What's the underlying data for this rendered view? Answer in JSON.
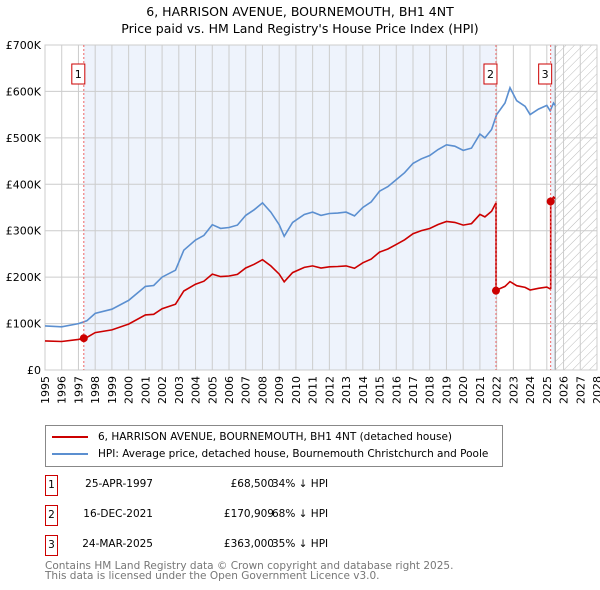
{
  "chart_data": {
    "type": "line",
    "title": "6, HARRISON AVENUE, BOURNEMOUTH, BH1 4NT",
    "subtitle": "Price paid vs. HM Land Registry's House Price Index (HPI)",
    "xlim": [
      1995,
      2028
    ],
    "ylim": [
      0,
      700000
    ],
    "x_ticks": [
      "1995",
      "1996",
      "1997",
      "1998",
      "1999",
      "2000",
      "2001",
      "2002",
      "2003",
      "2004",
      "2005",
      "2006",
      "2007",
      "2008",
      "2009",
      "2010",
      "2011",
      "2012",
      "2013",
      "2014",
      "2015",
      "2016",
      "2017",
      "2018",
      "2019",
      "2020",
      "2021",
      "2022",
      "2023",
      "2024",
      "2025",
      "2026",
      "2027",
      "2028"
    ],
    "y_ticks": [
      {
        "v": 0,
        "label": "£0"
      },
      {
        "v": 100000,
        "label": "£100K"
      },
      {
        "v": 200000,
        "label": "£200K"
      },
      {
        "v": 300000,
        "label": "£300K"
      },
      {
        "v": 400000,
        "label": "£400K"
      },
      {
        "v": 500000,
        "label": "£500K"
      },
      {
        "v": 600000,
        "label": "£600K"
      },
      {
        "v": 700000,
        "label": "£700K"
      }
    ],
    "grid": true,
    "forecast_hatch_from": 2025.5,
    "colors": {
      "property": "#cc0000",
      "hpi": "#5b8fd0",
      "shade": "#eef3fc"
    },
    "series": [
      {
        "name": "HPI",
        "x": [
          1995,
          1996,
          1997,
          1997.5,
          1998,
          1999,
          2000,
          2001,
          2001.5,
          2002,
          2002.8,
          2003.3,
          2004,
          2004.5,
          2005,
          2005.5,
          2006,
          2006.5,
          2007,
          2007.5,
          2008,
          2008.5,
          2009,
          2009.3,
          2009.8,
          2010.5,
          2011,
          2011.5,
          2012,
          2012.5,
          2013,
          2013.5,
          2014,
          2014.5,
          2015,
          2015.5,
          2016,
          2016.5,
          2017,
          2017.5,
          2018,
          2018.5,
          2019,
          2019.5,
          2020,
          2020.5,
          2021,
          2021.3,
          2021.7,
          2022,
          2022.5,
          2022.8,
          2023.2,
          2023.7,
          2024,
          2024.5,
          2025,
          2025.2,
          2025.4,
          2025.5
        ],
        "y": [
          95000,
          93000,
          100000,
          106000,
          122000,
          131000,
          150000,
          180000,
          182000,
          200000,
          215000,
          258000,
          280000,
          290000,
          313000,
          305000,
          307000,
          312000,
          333000,
          345000,
          360000,
          340000,
          313000,
          288000,
          318000,
          335000,
          340000,
          333000,
          337000,
          338000,
          340000,
          332000,
          350000,
          362000,
          385000,
          395000,
          410000,
          425000,
          445000,
          455000,
          462000,
          475000,
          485000,
          482000,
          473000,
          478000,
          508000,
          500000,
          518000,
          550000,
          575000,
          608000,
          580000,
          568000,
          550000,
          562000,
          570000,
          558000,
          575000,
          570000
        ]
      }
    ],
    "sales": [
      {
        "n": "1",
        "date": "25-APR-1997",
        "x": 1997.32,
        "price": 68500,
        "price_label": "£68,500",
        "hpi_diff": "34% ↓ HPI"
      },
      {
        "n": "2",
        "date": "16-DEC-2021",
        "x": 2021.96,
        "price": 170909,
        "price_label": "£170,909",
        "hpi_diff": "68% ↓ HPI"
      },
      {
        "n": "3",
        "date": "24-MAR-2025",
        "x": 2025.23,
        "price": 363000,
        "price_label": "£363,000",
        "hpi_diff": "35% ↓ HPI"
      }
    ],
    "legend": [
      "6, HARRISON AVENUE, BOURNEMOUTH, BH1 4NT (detached house)",
      "HPI: Average price, detached house, Bournemouth Christchurch and Poole"
    ]
  },
  "footer": [
    "Contains HM Land Registry data © Crown copyright and database right 2025.",
    "This data is licensed under the Open Government Licence v3.0."
  ]
}
